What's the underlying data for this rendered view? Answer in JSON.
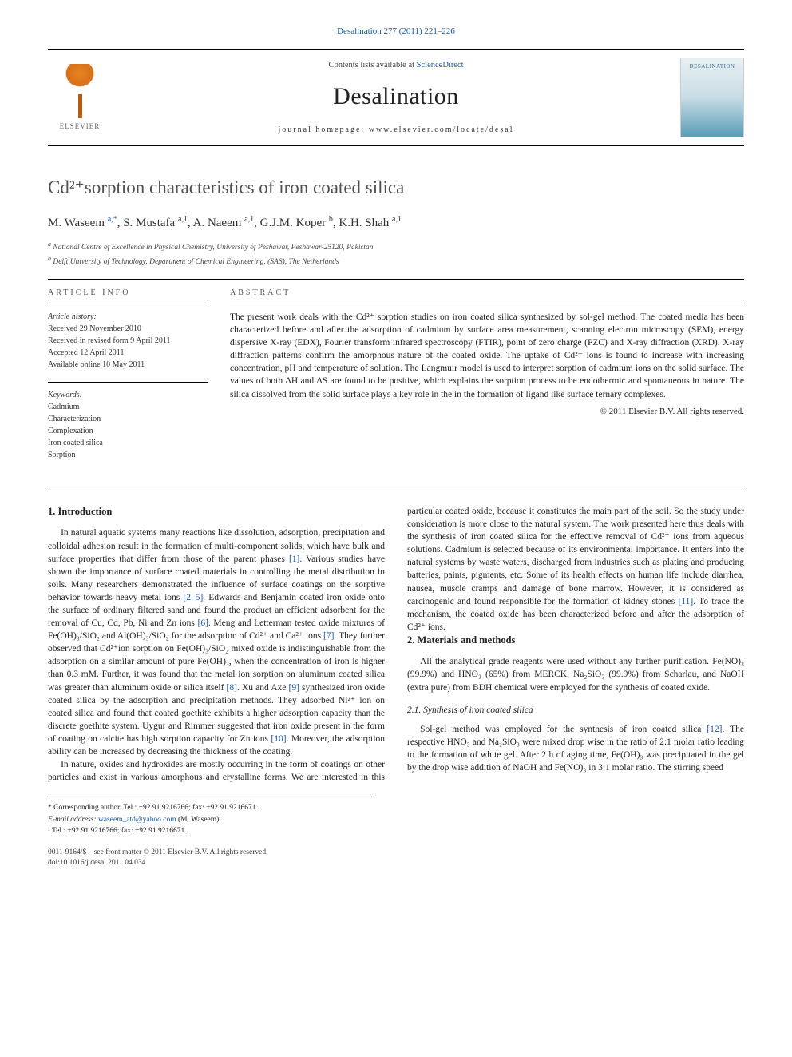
{
  "top_citation": "Desalination 277 (2011) 221–226",
  "masthead": {
    "contents_line_prefix": "Contents lists available at ",
    "contents_link": "ScienceDirect",
    "journal": "Desalination",
    "homepage_prefix": "journal homepage: ",
    "homepage": "www.elsevier.com/locate/desal",
    "publisher_label": "ELSEVIER",
    "cover_label": "DESALINATION"
  },
  "article": {
    "title_html": "Cd²⁺sorption characteristics of iron coated silica",
    "authors_line": "M. Waseem ",
    "authors": [
      {
        "name": "M. Waseem",
        "sup": "a,*"
      },
      {
        "name": "S. Mustafa",
        "sup": "a,1"
      },
      {
        "name": "A. Naeem",
        "sup": "a,1"
      },
      {
        "name": "G.J.M. Koper",
        "sup": "b"
      },
      {
        "name": "K.H. Shah",
        "sup": "a,1"
      }
    ],
    "affiliations": [
      {
        "mark": "a",
        "text": "National Centre of Excellence in Physical Chemistry, University of Peshawar, Peshawar-25120, Pakistan"
      },
      {
        "mark": "b",
        "text": "Delft University of Technology, Department of Chemical Engineering, (SAS), The Netherlands"
      }
    ]
  },
  "info": {
    "label": "article info",
    "history_heading": "Article history:",
    "history": [
      "Received 29 November 2010",
      "Received in revised form 9 April 2011",
      "Accepted 12 April 2011",
      "Available online 10 May 2011"
    ],
    "keywords_heading": "Keywords:",
    "keywords": [
      "Cadmium",
      "Characterization",
      "Complexation",
      "Iron coated silica",
      "Sorption"
    ]
  },
  "abstract": {
    "label": "abstract",
    "text": "The present work deals with the Cd²⁺ sorption studies on iron coated silica synthesized by sol-gel method. The coated media has been characterized before and after the adsorption of cadmium by surface area measurement, scanning electron microscopy (SEM), energy dispersive X-ray (EDX), Fourier transform infrared spectroscopy (FTIR), point of zero charge (PZC) and X-ray diffraction (XRD). X-ray diffraction patterns confirm the amorphous nature of the coated oxide. The uptake of Cd²⁺ ions is found to increase with increasing concentration, pH and temperature of solution. The Langmuir model is used to interpret sorption of cadmium ions on the solid surface. The values of both ΔH and ΔS are found to be positive, which explains the sorption process to be endothermic and spontaneous in nature. The silica dissolved from the solid surface plays a key role in the in the formation of ligand like surface ternary complexes.",
    "copyright": "© 2011 Elsevier B.V. All rights reserved."
  },
  "body": {
    "h_intro": "1. Introduction",
    "intro_p1_a": "In natural aquatic systems many reactions like dissolution, adsorption, precipitation and colloidal adhesion result in the formation of multi-component solids, which have bulk and surface properties that differ from those of the parent phases ",
    "ref1": "[1]",
    "intro_p1_b": ". Various studies have shown the importance of surface coated materials in controlling the metal distribution in soils. Many researchers demonstrated the influence of surface coatings on the sorptive behavior towards heavy metal ions ",
    "ref2_5": "[2–5]",
    "intro_p1_c": ". Edwards and Benjamin coated iron oxide onto the surface of ordinary filtered sand and found the product an efficient adsorbent for the removal of Cu, Cd, Pb, Ni and Zn ions ",
    "ref6": "[6]",
    "intro_p1_d": ". Meng and Letterman tested oxide mixtures of Fe(OH)₃/SiO₂ and Al(OH)₃/SiO₂ for the adsorption of Cd²⁺ and Ca²⁺ ions ",
    "ref7": "[7]",
    "intro_p1_e": ". They further observed that Cd²⁺ion sorption on Fe(OH)₃/SiO₂ mixed oxide is indistinguishable from the adsorption on a similar amount of pure Fe(OH)₃, when the concentration of iron is higher than 0.3 mM. Further, it was found that the metal ion sorption on aluminum coated silica was greater than aluminum oxide or silica itself ",
    "ref8": "[8]",
    "intro_p1_f": ". Xu and Axe ",
    "ref9": "[9]",
    "intro_p1_g": " synthesized iron oxide coated silica by the adsorption and precipitation methods. They adsorbed Ni²⁺ ion on coated silica and found that coated goethite exhibits a higher adsorption capacity than the discrete goethite system. Uygur and Rimmer suggested that iron oxide present in the form of coating on calcite has high sorption capacity for Zn ions ",
    "ref10": "[10]",
    "intro_p1_h": ". Moreover, the adsorption ability can be increased by decreasing the thickness of the coating.",
    "intro_p2_a": "In nature, oxides and hydroxides are mostly occurring in the form of coatings on other particles and exist in various amorphous and crystalline forms. We are interested in this particular coated oxide, because it constitutes the main part of the soil. So the study under consideration is more close to the natural system. The work presented here thus deals with the synthesis of iron coated silica for the effective removal of Cd²⁺ ions from aqueous solutions. Cadmium is selected because of its environmental importance. It enters into the natural systems by waste waters, discharged from industries such as plating and producing batteries, paints, pigments, etc. Some of its health effects on human life include diarrhea, nausea, muscle cramps and damage of bone marrow. However, it is considered as carcinogenic and found responsible for the formation of kidney stones ",
    "ref11": "[11]",
    "intro_p2_b": ". To trace the mechanism, the coated oxide has been characterized before and after the adsorption of Cd²⁺ ions.",
    "h_mm": "2. Materials and methods",
    "mm_p1": "All the analytical grade reagents were used without any further purification. Fe(NO)₃ (99.9%) and HNO₃ (65%) from MERCK, Na₂SiO₃ (99.9%) from Scharlau, and NaOH (extra pure) from BDH chemical were employed for the synthesis of coated oxide.",
    "h_syn": "2.1. Synthesis of iron coated silica",
    "syn_p1_a": "Sol-gel method was employed for the synthesis of iron coated silica ",
    "ref12": "[12]",
    "syn_p1_b": ". The respective HNO₃ and Na₂SiO₃ were mixed drop wise in the ratio of 2:1 molar ratio leading to the formation of white gel. After 2 h of aging time, Fe(OH)₃ was precipitated in the gel by the drop wise addition of NaOH and Fe(NO)₃ in 3:1 molar ratio. The stirring speed"
  },
  "footnotes": {
    "corr": "* Corresponding author. Tel.: +92 91 9216766; fax: +92 91 9216671.",
    "email_label": "E-mail address: ",
    "email": "waseem_atd@yahoo.com",
    "email_suffix": " (M. Waseem).",
    "note1": "¹ Tel.: +92 91 9216766; fax: +92 91 9216671."
  },
  "footer": {
    "left_l1": "0011-9164/$ – see front matter © 2011 Elsevier B.V. All rights reserved.",
    "left_l2": "doi:10.1016/j.desal.2011.04.034"
  },
  "colors": {
    "link": "#1557b0",
    "text": "#222222",
    "rule": "#000000",
    "elsevier_orange": "#e8851f"
  }
}
